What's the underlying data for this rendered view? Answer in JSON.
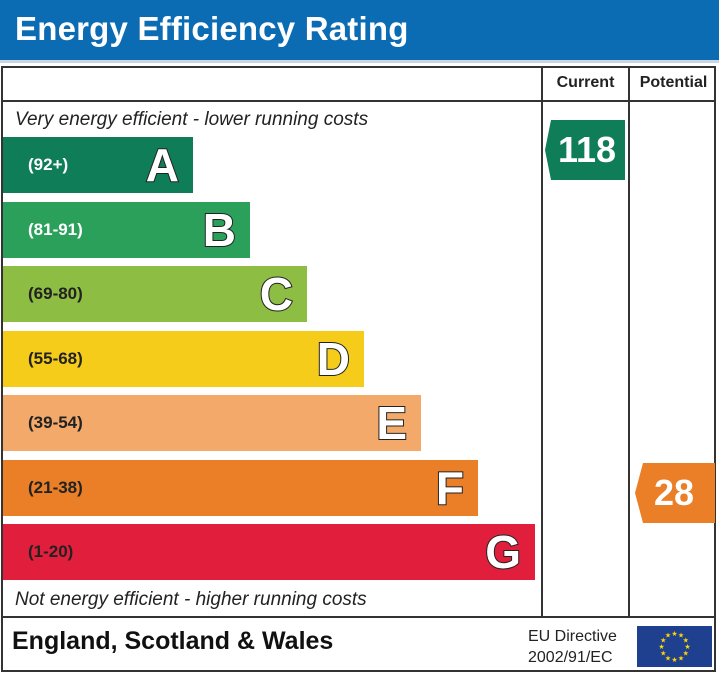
{
  "header": {
    "title": "Energy Efficiency Rating"
  },
  "columns": {
    "current": "Current",
    "potential": "Potential"
  },
  "captions": {
    "top": "Very energy efficient - lower running costs",
    "bottom": "Not energy efficient - higher running costs"
  },
  "footer": {
    "region": "England, Scotland & Wales",
    "directive_line1": "EU Directive",
    "directive_line2": "2002/91/EC"
  },
  "chart_data": {
    "type": "bar",
    "title": "Energy Efficiency Rating",
    "categories": [
      "A",
      "B",
      "C",
      "D",
      "E",
      "F",
      "G"
    ],
    "bands": [
      {
        "letter": "A",
        "range": "(92+)",
        "color": "#0f7d58",
        "text_color": "#ffffff"
      },
      {
        "letter": "B",
        "range": "(81-91)",
        "color": "#2aa05a",
        "text_color": "#ffffff"
      },
      {
        "letter": "C",
        "range": "(69-80)",
        "color": "#8dbd43",
        "text_color": "#222222"
      },
      {
        "letter": "D",
        "range": "(55-68)",
        "color": "#f5cc1a",
        "text_color": "#222222"
      },
      {
        "letter": "E",
        "range": "(39-54)",
        "color": "#f2a96a",
        "text_color": "#222222"
      },
      {
        "letter": "F",
        "range": "(21-38)",
        "color": "#ea7f27",
        "text_color": "#222222"
      },
      {
        "letter": "G",
        "range": "(1-20)",
        "color": "#e11f3c",
        "text_color": "#222222"
      }
    ],
    "current": {
      "value": 118,
      "band": "A",
      "color": "#0f7d58"
    },
    "potential": {
      "value": 28,
      "band": "F",
      "color": "#ea7f27"
    }
  }
}
